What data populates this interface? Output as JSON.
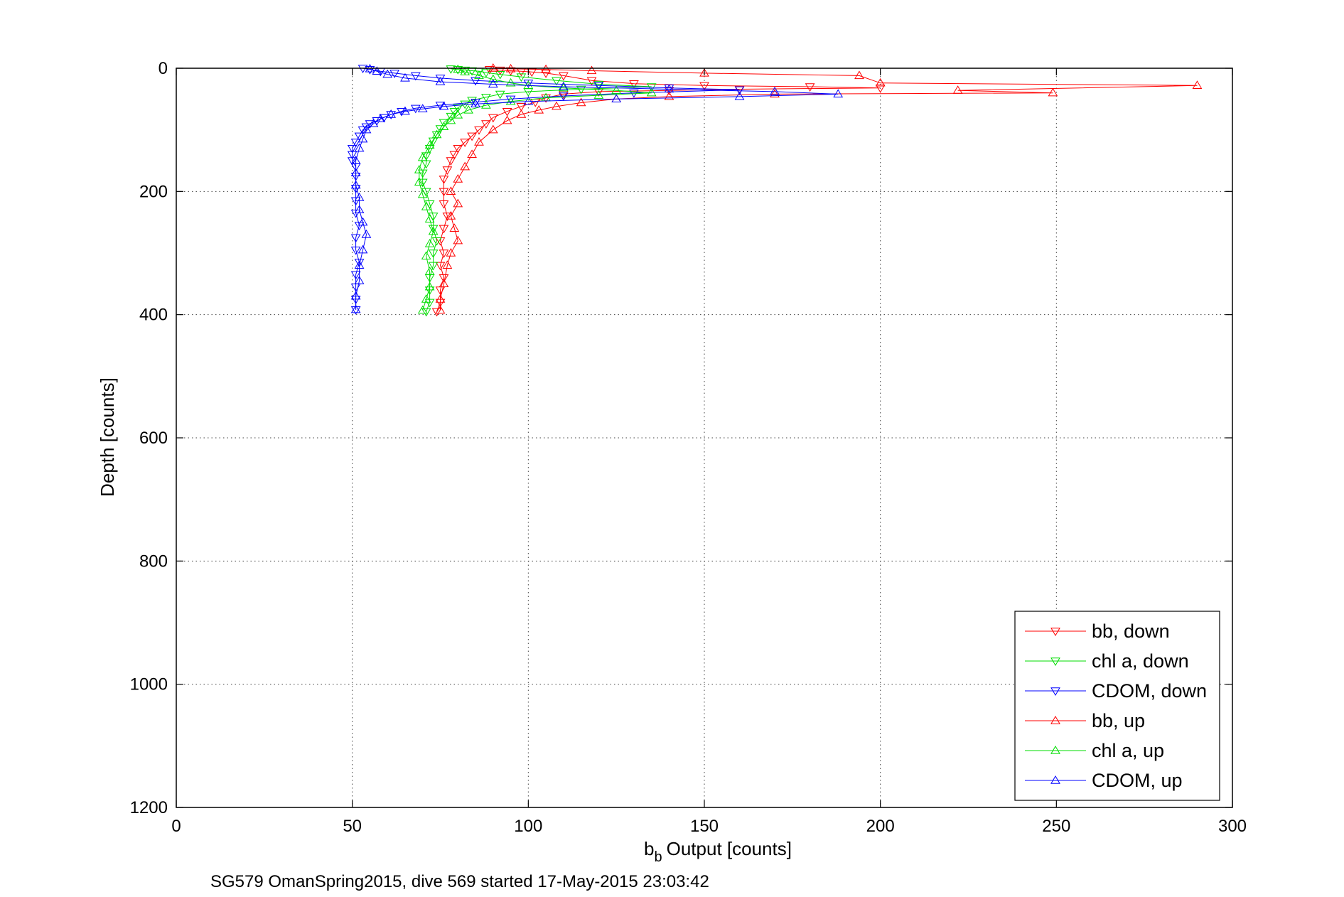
{
  "chart_data": {
    "type": "line",
    "title": "",
    "xlabel": "Output [counts]",
    "xlabel_symbol": "b",
    "xlabel_subscript": "b",
    "ylabel": "Depth [counts]",
    "xlim": [
      0,
      300
    ],
    "ylim": [
      0,
      1200
    ],
    "y_reversed": true,
    "grid": true,
    "legend_position": "bottom-right",
    "x_ticks": [
      "0",
      "50",
      "100",
      "150",
      "200",
      "250",
      "300"
    ],
    "y_ticks": [
      "0",
      "200",
      "400",
      "600",
      "800",
      "1000",
      "1200"
    ],
    "caption": "SG579 OmanSpring2015, dive 569 started 17-May-2015 23:03:42",
    "colors": {
      "bb": "#ff0000",
      "chl": "#00dd00",
      "cdom": "#0000ff"
    },
    "series": [
      {
        "name": "bb, down",
        "color": "#ff0000",
        "marker": "triangle-down",
        "points": [
          [
            89,
            2
          ],
          [
            92,
            3
          ],
          [
            95,
            4
          ],
          [
            98,
            5
          ],
          [
            101,
            6
          ],
          [
            105,
            8
          ],
          [
            110,
            12
          ],
          [
            118,
            20
          ],
          [
            130,
            25
          ],
          [
            150,
            28
          ],
          [
            180,
            30
          ],
          [
            200,
            32
          ],
          [
            160,
            34
          ],
          [
            140,
            36
          ],
          [
            120,
            38
          ],
          [
            110,
            42
          ],
          [
            105,
            48
          ],
          [
            102,
            55
          ],
          [
            98,
            62
          ],
          [
            94,
            70
          ],
          [
            90,
            80
          ],
          [
            88,
            90
          ],
          [
            86,
            100
          ],
          [
            84,
            110
          ],
          [
            82,
            120
          ],
          [
            80,
            130
          ],
          [
            79,
            140
          ],
          [
            78,
            150
          ],
          [
            77,
            165
          ],
          [
            76,
            180
          ],
          [
            76,
            200
          ],
          [
            76,
            220
          ],
          [
            77,
            240
          ],
          [
            76,
            260
          ],
          [
            75,
            280
          ],
          [
            76,
            300
          ],
          [
            75,
            320
          ],
          [
            76,
            340
          ],
          [
            75,
            360
          ],
          [
            75,
            380
          ],
          [
            74,
            395
          ]
        ]
      },
      {
        "name": "chl a, down",
        "color": "#00dd00",
        "marker": "triangle-down",
        "points": [
          [
            78,
            1
          ],
          [
            80,
            2
          ],
          [
            82,
            3
          ],
          [
            84,
            4
          ],
          [
            86,
            5
          ],
          [
            88,
            7
          ],
          [
            92,
            10
          ],
          [
            98,
            14
          ],
          [
            108,
            20
          ],
          [
            120,
            26
          ],
          [
            135,
            30
          ],
          [
            115,
            34
          ],
          [
            100,
            38
          ],
          [
            92,
            42
          ],
          [
            88,
            47
          ],
          [
            84,
            52
          ],
          [
            82,
            58
          ],
          [
            80,
            64
          ],
          [
            79,
            70
          ],
          [
            78,
            78
          ],
          [
            76,
            88
          ],
          [
            75,
            98
          ],
          [
            74,
            108
          ],
          [
            73,
            118
          ],
          [
            72,
            130
          ],
          [
            71,
            142
          ],
          [
            71,
            155
          ],
          [
            70,
            170
          ],
          [
            70,
            185
          ],
          [
            71,
            200
          ],
          [
            72,
            220
          ],
          [
            73,
            240
          ],
          [
            73,
            260
          ],
          [
            74,
            280
          ],
          [
            73,
            300
          ],
          [
            73,
            320
          ],
          [
            72,
            340
          ],
          [
            72,
            360
          ],
          [
            72,
            380
          ],
          [
            71,
            395
          ]
        ]
      },
      {
        "name": "CDOM, down",
        "color": "#0000ff",
        "marker": "triangle-down",
        "points": [
          [
            53,
            0
          ],
          [
            55,
            2
          ],
          [
            58,
            5
          ],
          [
            62,
            8
          ],
          [
            68,
            12
          ],
          [
            75,
            16
          ],
          [
            85,
            20
          ],
          [
            100,
            24
          ],
          [
            120,
            28
          ],
          [
            140,
            32
          ],
          [
            160,
            35
          ],
          [
            130,
            40
          ],
          [
            110,
            45
          ],
          [
            95,
            50
          ],
          [
            85,
            55
          ],
          [
            75,
            60
          ],
          [
            68,
            65
          ],
          [
            64,
            70
          ],
          [
            61,
            75
          ],
          [
            59,
            80
          ],
          [
            57,
            85
          ],
          [
            55,
            90
          ],
          [
            54,
            95
          ],
          [
            53,
            100
          ],
          [
            52,
            110
          ],
          [
            51,
            120
          ],
          [
            50,
            130
          ],
          [
            50,
            140
          ],
          [
            50,
            150
          ],
          [
            51,
            160
          ],
          [
            51,
            175
          ],
          [
            51,
            195
          ],
          [
            51,
            215
          ],
          [
            51,
            235
          ],
          [
            52,
            255
          ],
          [
            51,
            275
          ],
          [
            51,
            295
          ],
          [
            52,
            315
          ],
          [
            51,
            335
          ],
          [
            51,
            355
          ],
          [
            51,
            375
          ],
          [
            51,
            392
          ]
        ]
      },
      {
        "name": "bb, up",
        "color": "#ff0000",
        "marker": "triangle-up",
        "points": [
          [
            75,
            393
          ],
          [
            75,
            375
          ],
          [
            76,
            350
          ],
          [
            77,
            320
          ],
          [
            78,
            300
          ],
          [
            80,
            280
          ],
          [
            79,
            260
          ],
          [
            78,
            240
          ],
          [
            80,
            220
          ],
          [
            78,
            200
          ],
          [
            80,
            180
          ],
          [
            82,
            160
          ],
          [
            84,
            140
          ],
          [
            86,
            120
          ],
          [
            90,
            100
          ],
          [
            94,
            85
          ],
          [
            98,
            75
          ],
          [
            103,
            68
          ],
          [
            108,
            62
          ],
          [
            115,
            56
          ],
          [
            125,
            50
          ],
          [
            140,
            46
          ],
          [
            170,
            42
          ],
          [
            249,
            40
          ],
          [
            222,
            36
          ],
          [
            290,
            28
          ],
          [
            200,
            24
          ],
          [
            194,
            12
          ],
          [
            150,
            8
          ],
          [
            118,
            4
          ],
          [
            105,
            2
          ],
          [
            95,
            1
          ],
          [
            90,
            0
          ]
        ]
      },
      {
        "name": "chl a, up",
        "color": "#00dd00",
        "marker": "triangle-up",
        "points": [
          [
            70,
            393
          ],
          [
            71,
            375
          ],
          [
            72,
            355
          ],
          [
            72,
            330
          ],
          [
            71,
            305
          ],
          [
            72,
            285
          ],
          [
            73,
            265
          ],
          [
            72,
            245
          ],
          [
            71,
            225
          ],
          [
            70,
            205
          ],
          [
            69,
            185
          ],
          [
            69,
            165
          ],
          [
            70,
            145
          ],
          [
            72,
            125
          ],
          [
            74,
            108
          ],
          [
            76,
            95
          ],
          [
            78,
            85
          ],
          [
            80,
            76
          ],
          [
            83,
            68
          ],
          [
            88,
            60
          ],
          [
            95,
            54
          ],
          [
            105,
            48
          ],
          [
            120,
            44
          ],
          [
            135,
            40
          ],
          [
            125,
            36
          ],
          [
            110,
            32
          ],
          [
            100,
            28
          ],
          [
            95,
            24
          ],
          [
            90,
            18
          ],
          [
            86,
            12
          ],
          [
            82,
            6
          ],
          [
            80,
            2
          ]
        ]
      },
      {
        "name": "CDOM, up",
        "color": "#0000ff",
        "marker": "triangle-up",
        "points": [
          [
            51,
            392
          ],
          [
            51,
            370
          ],
          [
            52,
            345
          ],
          [
            52,
            320
          ],
          [
            53,
            295
          ],
          [
            54,
            270
          ],
          [
            53,
            250
          ],
          [
            52,
            230
          ],
          [
            52,
            210
          ],
          [
            51,
            190
          ],
          [
            51,
            170
          ],
          [
            51,
            150
          ],
          [
            52,
            130
          ],
          [
            53,
            115
          ],
          [
            54,
            100
          ],
          [
            56,
            90
          ],
          [
            58,
            82
          ],
          [
            61,
            75
          ],
          [
            65,
            70
          ],
          [
            70,
            66
          ],
          [
            76,
            62
          ],
          [
            85,
            58
          ],
          [
            100,
            54
          ],
          [
            125,
            50
          ],
          [
            160,
            46
          ],
          [
            188,
            42
          ],
          [
            170,
            38
          ],
          [
            140,
            34
          ],
          [
            110,
            30
          ],
          [
            90,
            26
          ],
          [
            75,
            22
          ],
          [
            65,
            16
          ],
          [
            60,
            10
          ],
          [
            57,
            5
          ],
          [
            55,
            1
          ]
        ]
      }
    ]
  }
}
